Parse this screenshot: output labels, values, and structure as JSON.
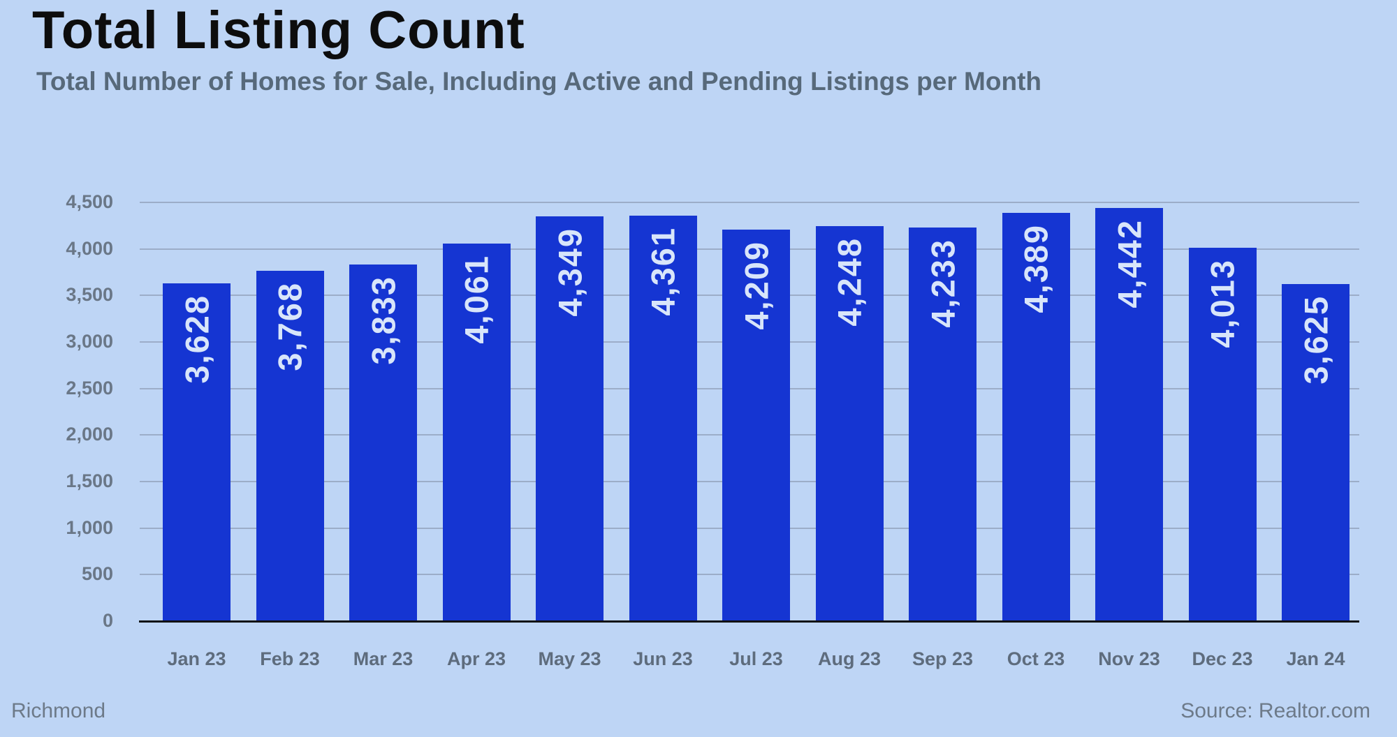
{
  "header": {
    "title": "Total Listing Count",
    "subtitle": "Total Number of Homes for Sale, Including Active and Pending Listings per Month"
  },
  "footer": {
    "location": "Richmond",
    "source": "Source: Realtor.com"
  },
  "colors": {
    "background": "#bed5f5",
    "bar": "#1535d2",
    "grid": "#9cadc8",
    "axis": "#111111",
    "title": "#0d0d0d",
    "subtitle": "#57697a",
    "bar_value_label": "#d8e5fa",
    "y_tick_label": "#6a7787",
    "x_tick_label": "#5e6c7d",
    "footer_text": "#6d7a89"
  },
  "chart_data": {
    "type": "bar",
    "title": "Total Listing Count",
    "subtitle": "Total Number of Homes for Sale, Including Active and Pending Listings per Month",
    "categories": [
      "Jan 23",
      "Feb 23",
      "Mar 23",
      "Apr 23",
      "May 23",
      "Jun 23",
      "Jul 23",
      "Aug 23",
      "Sep 23",
      "Oct 23",
      "Nov 23",
      "Dec 23",
      "Jan 24"
    ],
    "values": [
      3628,
      3768,
      3833,
      4061,
      4349,
      4361,
      4209,
      4248,
      4233,
      4389,
      4442,
      4013,
      3625
    ],
    "value_labels": [
      "3,628",
      "3,768",
      "3,833",
      "4,061",
      "4,349",
      "4,361",
      "4,209",
      "4,248",
      "4,233",
      "4,389",
      "4,442",
      "4,013",
      "3,625"
    ],
    "value_label_rotation_deg": -90,
    "xlabel": "",
    "ylabel": "",
    "ylim": [
      0,
      4500
    ],
    "y_tick_values": [
      0,
      500,
      1000,
      1500,
      2000,
      2500,
      3000,
      3500,
      4000,
      4500
    ],
    "y_tick_labels": [
      "0",
      "500",
      "1,000",
      "1,500",
      "2,000",
      "2,500",
      "3,000",
      "3,500",
      "4,000",
      "4,500"
    ],
    "grid": true,
    "legend": false
  }
}
